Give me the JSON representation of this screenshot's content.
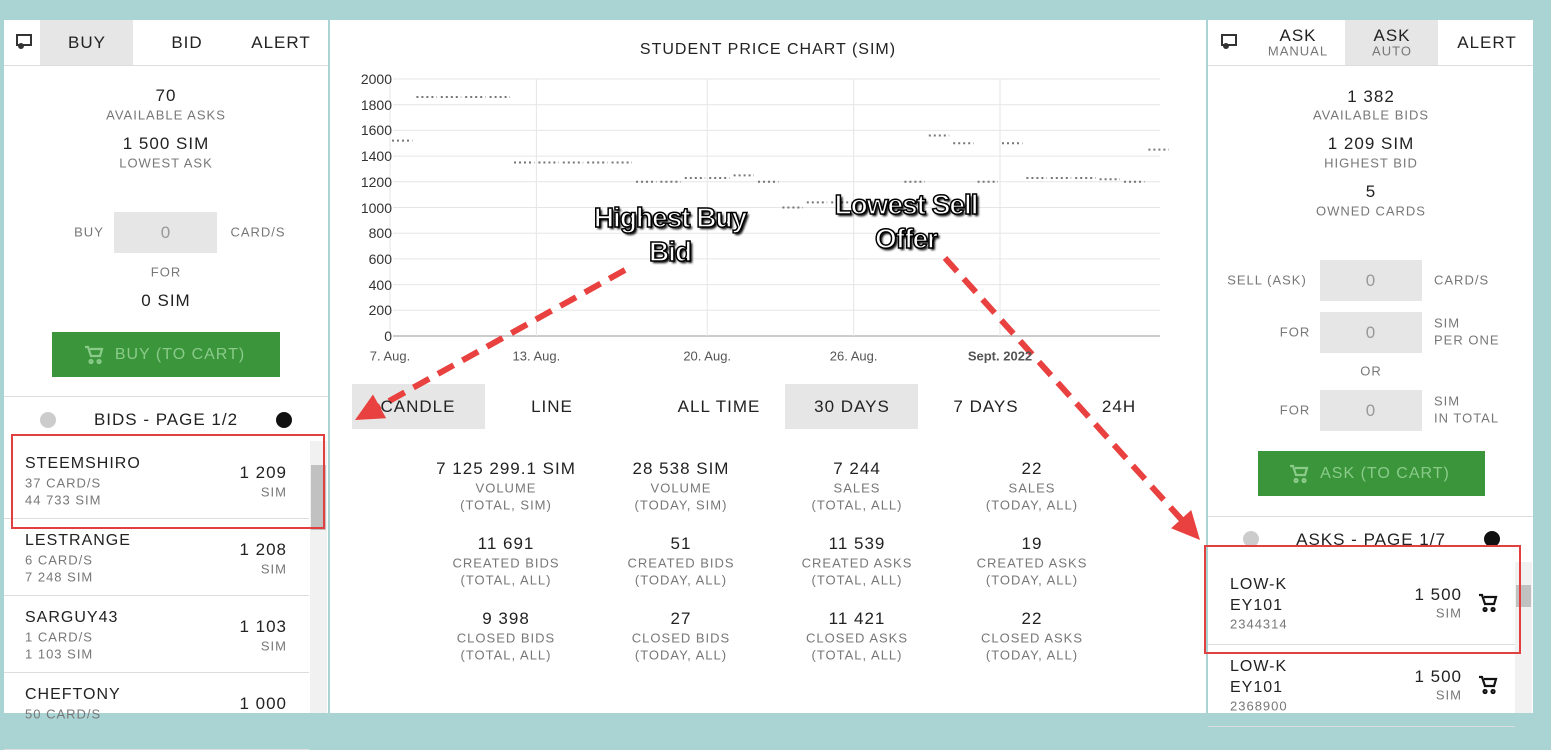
{
  "buy_panel": {
    "tabs": [
      "BUY",
      "BID",
      "ALERT"
    ],
    "stats": [
      {
        "value": "70",
        "label": "AVAILABLE ASKS"
      },
      {
        "value": "1 500 SIM",
        "label": "LOWEST ASK"
      }
    ],
    "buy_label": "BUY",
    "qty": "0",
    "qty_unit": "CARD/S",
    "for_label": "FOR",
    "total": "0 SIM",
    "button": "BUY (TO CART)",
    "list_title": "BIDS - PAGE 1/2",
    "bids": [
      {
        "name": "STEEMSHIRO",
        "cards": "37 CARD/S",
        "sim": "44 733 SIM",
        "price": "1 209",
        "unit": "SIM"
      },
      {
        "name": "LESTRANGE",
        "cards": "6 CARD/S",
        "sim": "7 248 SIM",
        "price": "1 208",
        "unit": "SIM"
      },
      {
        "name": "SARGUY43",
        "cards": "1 CARD/S",
        "sim": "1 103 SIM",
        "price": "1 103",
        "unit": "SIM"
      },
      {
        "name": "CHEFTONY",
        "cards": "50 CARD/S",
        "sim": "",
        "price": "1 000",
        "unit": ""
      }
    ]
  },
  "price_chart": {
    "type": "line",
    "title": "STUDENT PRICE CHART (SIM)",
    "categories": [
      "7. Aug.",
      null,
      null,
      null,
      null,
      null,
      "13. Aug.",
      null,
      null,
      null,
      null,
      null,
      null,
      "20. Aug.",
      null,
      null,
      null,
      null,
      null,
      "26. Aug.",
      null,
      null,
      null,
      null,
      null,
      "Sept. 2022",
      null,
      null,
      null,
      null,
      null,
      null
    ],
    "values": [
      1520,
      1860,
      1860,
      1860,
      1860,
      1350,
      1350,
      1350,
      1350,
      1350,
      1200,
      1200,
      1230,
      1230,
      1250,
      1200,
      1000,
      1040,
      1040,
      1040,
      null,
      1200,
      1560,
      1500,
      1200,
      1500,
      1230,
      1230,
      1230,
      1220,
      1200,
      1450
    ],
    "color": "#777777",
    "ylim": [
      0,
      2000
    ],
    "yticks": [
      0,
      200,
      400,
      600,
      800,
      1000,
      1200,
      1400,
      1600,
      1800,
      2000
    ],
    "grid": true
  },
  "chart_controls": [
    "CANDLE",
    "LINE",
    "ALL TIME",
    "30 DAYS",
    "7 DAYS",
    "24H"
  ],
  "stats": [
    {
      "value": "7 125 299.1 SIM",
      "label": "VOLUME",
      "sub": "(TOTAL, SIM)"
    },
    {
      "value": "28 538 SIM",
      "label": "VOLUME",
      "sub": "(TODAY, SIM)"
    },
    {
      "value": "7 244",
      "label": "SALES",
      "sub": "(TOTAL, ALL)"
    },
    {
      "value": "22",
      "label": "SALES",
      "sub": "(TODAY, ALL)"
    },
    {
      "value": "11 691",
      "label": "CREATED BIDS",
      "sub": "(TOTAL, ALL)"
    },
    {
      "value": "51",
      "label": "CREATED BIDS",
      "sub": "(TODAY, ALL)"
    },
    {
      "value": "11 539",
      "label": "CREATED ASKS",
      "sub": "(TOTAL, ALL)"
    },
    {
      "value": "19",
      "label": "CREATED ASKS",
      "sub": "(TODAY, ALL)"
    },
    {
      "value": "9 398",
      "label": "CLOSED BIDS",
      "sub": "(TOTAL, ALL)"
    },
    {
      "value": "27",
      "label": "CLOSED BIDS",
      "sub": "(TODAY, ALL)"
    },
    {
      "value": "11 421",
      "label": "CLOSED ASKS",
      "sub": "(TOTAL, ALL)"
    },
    {
      "value": "22",
      "label": "CLOSED ASKS",
      "sub": "(TODAY, ALL)"
    }
  ],
  "ask_panel": {
    "tabs": [
      {
        "main": "ASK",
        "sub": "MANUAL"
      },
      {
        "main": "ASK",
        "sub": "AUTO"
      },
      {
        "main": "ALERT",
        "sub": ""
      }
    ],
    "stats": [
      {
        "value": "1 382",
        "label": "AVAILABLE BIDS"
      },
      {
        "value": "1 209 SIM",
        "label": "HIGHEST BID"
      },
      {
        "value": "5",
        "label": "OWNED CARDS"
      }
    ],
    "sell_label": "SELL (ASK)",
    "qty": "0",
    "qty_unit": "CARD/S",
    "for_label": "FOR",
    "per_one_value": "0",
    "per_one_unit": [
      "SIM",
      "PER ONE"
    ],
    "or_label": "OR",
    "total_value": "0",
    "total_unit": [
      "SIM",
      "IN TOTAL"
    ],
    "button": "ASK (TO CART)",
    "list_title": "ASKS - PAGE 1/7",
    "asks": [
      {
        "name": "LOW-KEY101",
        "id": "2344314",
        "price": "1 500",
        "unit": "SIM"
      },
      {
        "name": "LOW-KEY101",
        "id": "2368900",
        "price": "1 500",
        "unit": "SIM"
      }
    ]
  },
  "annotations": [
    "Highest Buy Bid",
    "Lowest Sell Offer"
  ]
}
